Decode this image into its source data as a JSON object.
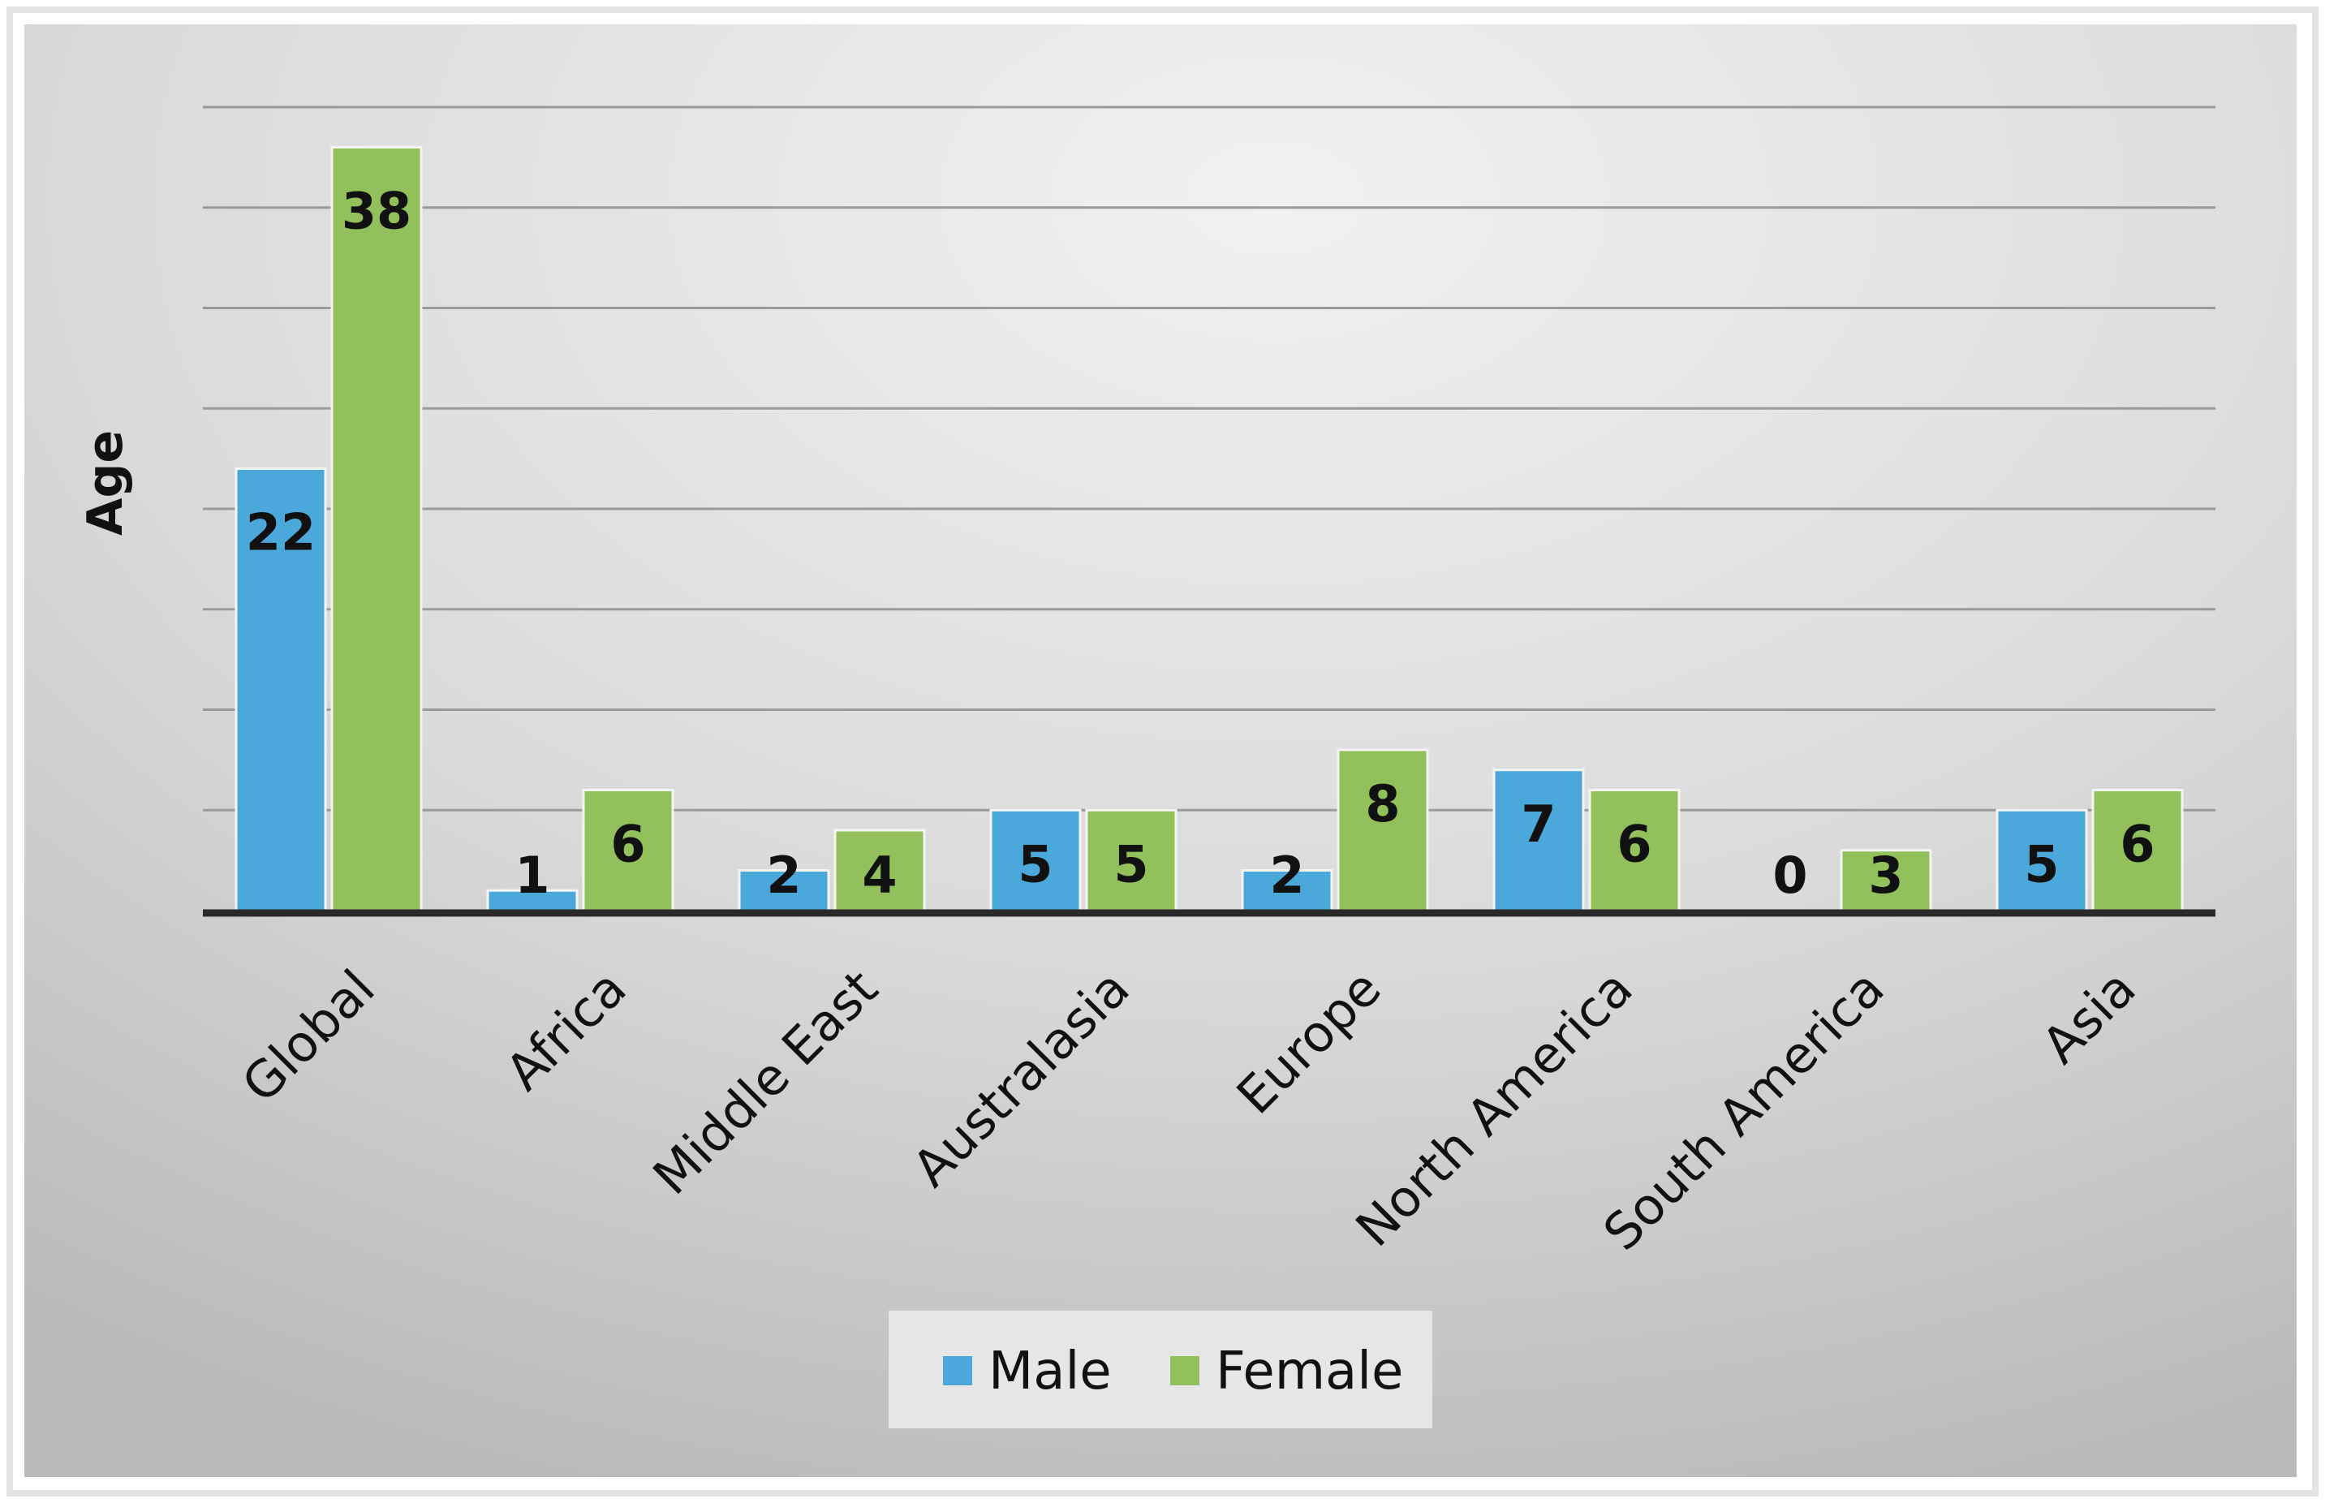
{
  "chart_data": {
    "type": "bar",
    "title": "",
    "xlabel": "",
    "ylabel": "Age",
    "ylim": [
      0,
      40
    ],
    "grid": true,
    "legend": "bottom",
    "categories": [
      "Global",
      "Africa",
      "Middle East",
      "Australasia",
      "Europe",
      "North America",
      "South America",
      "Asia"
    ],
    "series": [
      {
        "name": "Male",
        "color": "#4aa8db",
        "values": [
          22,
          1,
          2,
          5,
          2,
          7,
          0,
          5
        ]
      },
      {
        "name": "Female",
        "color": "#92c05a",
        "values": [
          38,
          6,
          4,
          5,
          8,
          6,
          3,
          6
        ]
      }
    ]
  }
}
